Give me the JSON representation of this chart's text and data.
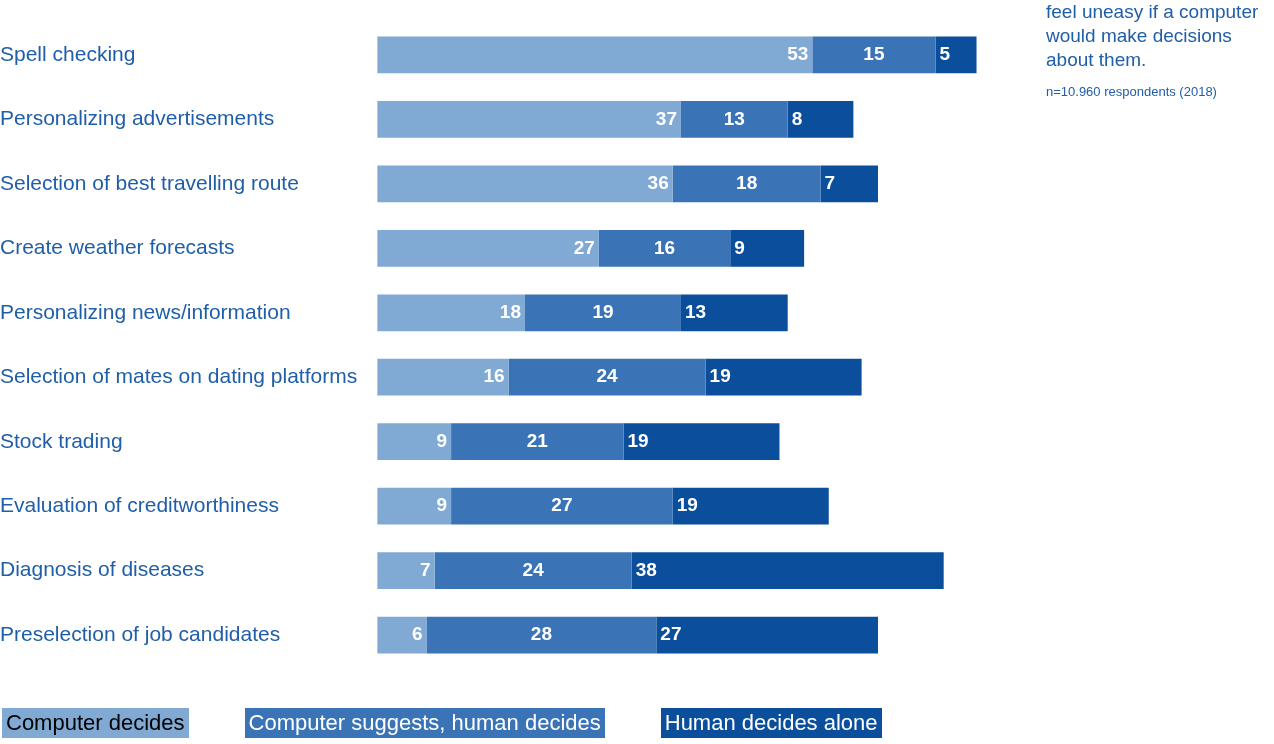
{
  "chart_data": {
    "type": "bar",
    "orientation": "horizontal",
    "stacked": true,
    "title": "feel uneasy if a computer would make decisions about them.",
    "annotations": [
      "n=10.960 respondents (2018)"
    ],
    "categories": [
      "Spell checking",
      "Personalizing advertisements",
      "Selection of best travelling route",
      "Create weather forecasts",
      "Personalizing news/information",
      "Selection of mates on dating platforms",
      "Stock trading",
      "Evaluation of creditworthiness",
      "Diagnosis of diseases",
      "Preselection of job candidates"
    ],
    "series": [
      {
        "name": "Computer decides",
        "color": "#80a9d4",
        "values": [
          53,
          37,
          36,
          27,
          18,
          16,
          9,
          9,
          7,
          6
        ]
      },
      {
        "name": "Computer suggests, human decides",
        "color": "#3a74b6",
        "values": [
          15,
          13,
          18,
          16,
          19,
          24,
          21,
          27,
          24,
          28
        ]
      },
      {
        "name": "Human decides alone",
        "color": "#0b4f9c",
        "values": [
          5,
          8,
          7,
          9,
          13,
          19,
          19,
          19,
          38,
          27
        ]
      }
    ],
    "data_labels": true,
    "legend": "bottom",
    "grid": false,
    "tick_labels": "y"
  }
}
